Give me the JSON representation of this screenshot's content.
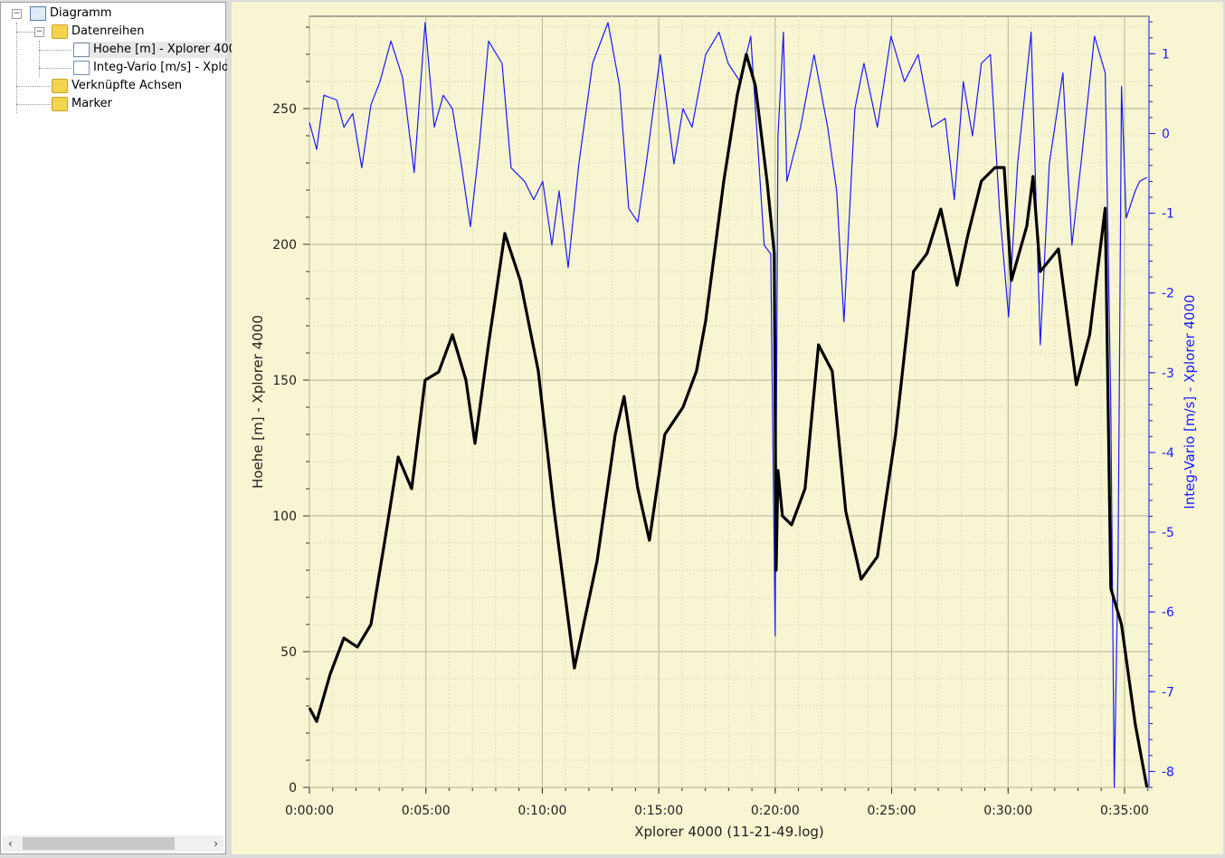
{
  "tree": {
    "root": "Diagramm",
    "series_folder": "Datenreihen",
    "series": [
      "Hoehe [m] - Xplorer 4000",
      "Integ-Vario [m/s] - Xplorer 4000"
    ],
    "axes_folder": "Verknüpfte Achsen",
    "marker_folder": "Marker"
  },
  "chart_data": {
    "type": "line",
    "xlabel": "Xplorer 4000 (11-21-49.log)",
    "ylabel": "Hoehe [m] - Xplorer 4000",
    "y2label": "Integ-Vario [m/s] - Xplorer 4000",
    "xlim": [
      0,
      36.05
    ],
    "ylim": [
      0,
      284
    ],
    "y2lim": [
      -8.2,
      1.47
    ],
    "xticks": [
      {
        "v": 0,
        "label": "0:00:00"
      },
      {
        "v": 5,
        "label": "0:05:00"
      },
      {
        "v": 10,
        "label": "0:10:00"
      },
      {
        "v": 15,
        "label": "0:15:00"
      },
      {
        "v": 20,
        "label": "0:20:00"
      },
      {
        "v": 25,
        "label": "0:25:00"
      },
      {
        "v": 30,
        "label": "0:30:00"
      },
      {
        "v": 35,
        "label": "0:35:00"
      }
    ],
    "yticks": [
      {
        "v": 0,
        "label": "0"
      },
      {
        "v": 50,
        "label": "50"
      },
      {
        "v": 100,
        "label": "100"
      },
      {
        "v": 150,
        "label": "150"
      },
      {
        "v": 200,
        "label": "200"
      },
      {
        "v": 250,
        "label": "250"
      }
    ],
    "y2ticks": [
      {
        "v": 1,
        "label": "1"
      },
      {
        "v": 0,
        "label": "0"
      },
      {
        "v": -1,
        "label": "-1"
      },
      {
        "v": -2,
        "label": "-2"
      },
      {
        "v": -3,
        "label": "-3"
      },
      {
        "v": -4,
        "label": "-4"
      },
      {
        "v": -5,
        "label": "-5"
      },
      {
        "v": -6,
        "label": "-6"
      },
      {
        "v": -7,
        "label": "-7"
      },
      {
        "v": -8,
        "label": "-8"
      }
    ],
    "grid": true,
    "series": [
      {
        "name": "Hoehe [m] - Xplorer 4000",
        "axis": "left",
        "color": "#000000",
        "points": [
          [
            0,
            29.3
          ],
          [
            0.31,
            24.3
          ],
          [
            0.89,
            41.7
          ],
          [
            1.48,
            55
          ],
          [
            2.06,
            51.7
          ],
          [
            2.64,
            60
          ],
          [
            3.22,
            90
          ],
          [
            3.81,
            121.7
          ],
          [
            4.39,
            110
          ],
          [
            4.97,
            150
          ],
          [
            5.55,
            153
          ],
          [
            6.14,
            166.7
          ],
          [
            6.72,
            150
          ],
          [
            7.11,
            126.7
          ],
          [
            7.69,
            163.3
          ],
          [
            8.39,
            204
          ],
          [
            9.05,
            186.7
          ],
          [
            9.83,
            153.3
          ],
          [
            10.49,
            103.3
          ],
          [
            11.38,
            44
          ],
          [
            12.35,
            83.3
          ],
          [
            13.13,
            130
          ],
          [
            13.51,
            144
          ],
          [
            14.1,
            110
          ],
          [
            14.6,
            91
          ],
          [
            15.26,
            130
          ],
          [
            16.04,
            140
          ],
          [
            16.62,
            153.3
          ],
          [
            17.01,
            171.7
          ],
          [
            17.79,
            223.3
          ],
          [
            18.37,
            255
          ],
          [
            18.76,
            270
          ],
          [
            19.15,
            258.3
          ],
          [
            19.65,
            223.3
          ],
          [
            19.96,
            196.7
          ],
          [
            20.04,
            80
          ],
          [
            20.12,
            116.7
          ],
          [
            20.31,
            100
          ],
          [
            20.7,
            96.7
          ],
          [
            21.28,
            110
          ],
          [
            21.86,
            163
          ],
          [
            22.45,
            153.3
          ],
          [
            23.03,
            101.7
          ],
          [
            23.69,
            76.7
          ],
          [
            24.39,
            85
          ],
          [
            25.17,
            130
          ],
          [
            25.94,
            190
          ],
          [
            26.52,
            196.7
          ],
          [
            27.11,
            213
          ],
          [
            27.81,
            185
          ],
          [
            28.27,
            203.3
          ],
          [
            28.85,
            223.3
          ],
          [
            29.44,
            228.3
          ],
          [
            29.83,
            228.3
          ],
          [
            30.14,
            186.7
          ],
          [
            30.8,
            206.7
          ],
          [
            31.07,
            225
          ],
          [
            31.38,
            190
          ],
          [
            32.16,
            198.3
          ],
          [
            32.93,
            148.3
          ],
          [
            33.5,
            166.7
          ],
          [
            34.17,
            213.3
          ],
          [
            34.41,
            73.3
          ],
          [
            34.87,
            60
          ],
          [
            35.46,
            23.3
          ],
          [
            35.96,
            0
          ]
        ]
      },
      {
        "name": "Integ-Vario [m/s] - Xplorer 4000",
        "axis": "right",
        "color": "#1a1aff",
        "points": [
          [
            0,
            0.14
          ],
          [
            0.31,
            -0.2
          ],
          [
            0.62,
            0.48
          ],
          [
            1.17,
            0.42
          ],
          [
            1.48,
            0.08
          ],
          [
            1.86,
            0.25
          ],
          [
            2.25,
            -0.43
          ],
          [
            2.64,
            0.36
          ],
          [
            3.03,
            0.65
          ],
          [
            3.5,
            1.16
          ],
          [
            4.0,
            0.7
          ],
          [
            4.5,
            -0.49
          ],
          [
            4.97,
            1.39
          ],
          [
            5.36,
            0.08
          ],
          [
            5.75,
            0.48
          ],
          [
            6.14,
            0.31
          ],
          [
            6.52,
            -0.38
          ],
          [
            6.91,
            -1.17
          ],
          [
            7.3,
            -0.15
          ],
          [
            7.69,
            1.16
          ],
          [
            8.27,
            0.88
          ],
          [
            8.66,
            -0.43
          ],
          [
            9.24,
            -0.6
          ],
          [
            9.63,
            -0.83
          ],
          [
            10.02,
            -0.6
          ],
          [
            10.41,
            -1.4
          ],
          [
            10.72,
            -0.72
          ],
          [
            11.11,
            -1.68
          ],
          [
            11.57,
            -0.38
          ],
          [
            12.16,
            0.88
          ],
          [
            12.82,
            1.39
          ],
          [
            13.32,
            0.59
          ],
          [
            13.71,
            -0.94
          ],
          [
            14.1,
            -1.11
          ],
          [
            14.49,
            -0.32
          ],
          [
            15.07,
            0.99
          ],
          [
            15.65,
            -0.38
          ],
          [
            16.04,
            0.31
          ],
          [
            16.43,
            0.08
          ],
          [
            17.01,
            0.99
          ],
          [
            17.59,
            1.27
          ],
          [
            17.98,
            0.88
          ],
          [
            18.49,
            0.65
          ],
          [
            18.95,
            1.22
          ],
          [
            19.53,
            -1.4
          ],
          [
            19.81,
            -1.51
          ],
          [
            20.0,
            -6.3
          ],
          [
            20.12,
            -0.03
          ],
          [
            20.35,
            1.27
          ],
          [
            20.5,
            -0.6
          ],
          [
            21.09,
            0.08
          ],
          [
            21.67,
            0.99
          ],
          [
            22.25,
            0.08
          ],
          [
            22.64,
            -0.72
          ],
          [
            22.95,
            -2.36
          ],
          [
            23.42,
            0.31
          ],
          [
            23.81,
            0.88
          ],
          [
            24.39,
            0.08
          ],
          [
            24.97,
            1.22
          ],
          [
            25.55,
            0.65
          ],
          [
            26.14,
            0.99
          ],
          [
            26.72,
            0.08
          ],
          [
            27.3,
            0.19
          ],
          [
            27.69,
            -0.83
          ],
          [
            28.08,
            0.65
          ],
          [
            28.47,
            -0.03
          ],
          [
            28.85,
            0.88
          ],
          [
            29.24,
            0.99
          ],
          [
            29.63,
            -0.94
          ],
          [
            30.02,
            -2.3
          ],
          [
            30.41,
            -0.38
          ],
          [
            30.99,
            1.27
          ],
          [
            31.38,
            -2.65
          ],
          [
            31.77,
            -0.38
          ],
          [
            32.35,
            0.76
          ],
          [
            32.74,
            -1.4
          ],
          [
            33.13,
            -0.38
          ],
          [
            33.71,
            1.22
          ],
          [
            34.17,
            0.76
          ],
          [
            34.41,
            -3.44
          ],
          [
            34.56,
            -8.2
          ],
          [
            34.72,
            -5.38
          ],
          [
            34.87,
            0.59
          ],
          [
            35.07,
            -1.06
          ],
          [
            35.46,
            -0.72
          ],
          [
            35.65,
            -0.6
          ],
          [
            35.96,
            -0.55
          ]
        ]
      }
    ]
  }
}
